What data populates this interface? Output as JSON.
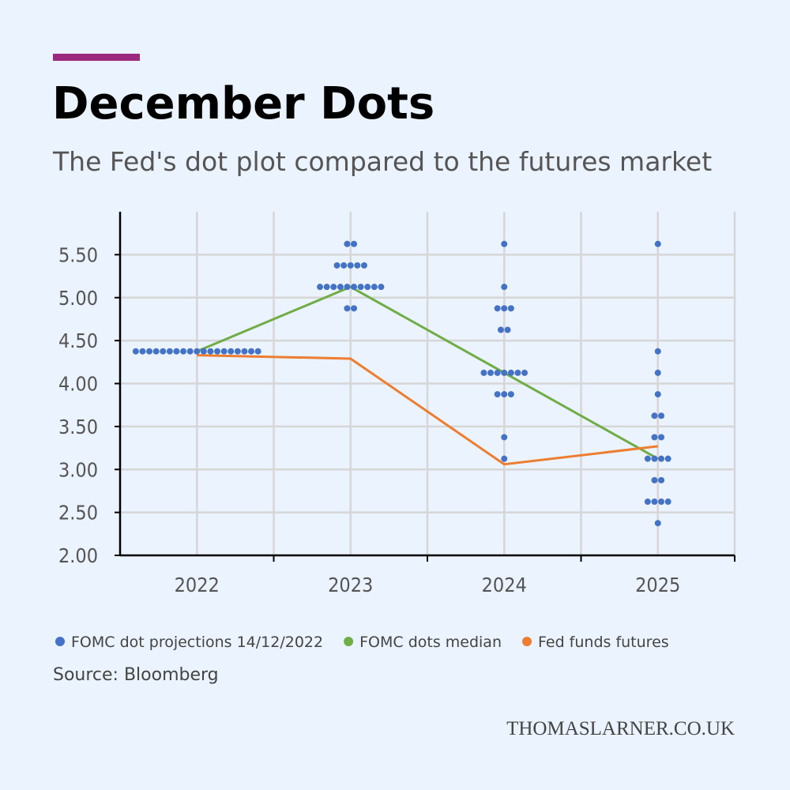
{
  "chart_data": {
    "type": "dot-line",
    "title": "December Dots",
    "subtitle": "The Fed's dot plot compared to the futures market",
    "source": "Source: Bloomberg",
    "credit": "THOMASLARNER.CO.UK",
    "categories": [
      "2022",
      "2023",
      "2024",
      "2025"
    ],
    "ylim": [
      2,
      6
    ],
    "yticks": [
      {
        "value": 2,
        "label": "2.00"
      },
      {
        "value": 2.5,
        "label": "2.50"
      },
      {
        "value": 3,
        "label": "3.00"
      },
      {
        "value": 3.5,
        "label": "3.50"
      },
      {
        "value": 4,
        "label": "4.00"
      },
      {
        "value": 4.5,
        "label": "4.50"
      },
      {
        "value": 5,
        "label": "5.00"
      },
      {
        "value": 5.5,
        "label": "5.50"
      }
    ],
    "grid": true,
    "dots": {
      "name": "FOMC dot projections 14/12/2022",
      "color": "#4472c4",
      "points": [
        {
          "category": "2022",
          "value": 4.375,
          "count": 19
        },
        {
          "category": "2023",
          "value": 5.625,
          "count": 2
        },
        {
          "category": "2023",
          "value": 5.375,
          "count": 5
        },
        {
          "category": "2023",
          "value": 5.125,
          "count": 10
        },
        {
          "category": "2023",
          "value": 4.875,
          "count": 2
        },
        {
          "category": "2024",
          "value": 5.625,
          "count": 1
        },
        {
          "category": "2024",
          "value": 5.125,
          "count": 1
        },
        {
          "category": "2024",
          "value": 4.875,
          "count": 3
        },
        {
          "category": "2024",
          "value": 4.625,
          "count": 2
        },
        {
          "category": "2024",
          "value": 4.125,
          "count": 7
        },
        {
          "category": "2024",
          "value": 3.875,
          "count": 3
        },
        {
          "category": "2024",
          "value": 3.375,
          "count": 1
        },
        {
          "category": "2024",
          "value": 3.125,
          "count": 1
        },
        {
          "category": "2025",
          "value": 5.625,
          "count": 1
        },
        {
          "category": "2025",
          "value": 4.375,
          "count": 1
        },
        {
          "category": "2025",
          "value": 4.125,
          "count": 1
        },
        {
          "category": "2025",
          "value": 3.875,
          "count": 1
        },
        {
          "category": "2025",
          "value": 3.625,
          "count": 2
        },
        {
          "category": "2025",
          "value": 3.375,
          "count": 2
        },
        {
          "category": "2025",
          "value": 3.125,
          "count": 4
        },
        {
          "category": "2025",
          "value": 2.875,
          "count": 2
        },
        {
          "category": "2025",
          "value": 2.625,
          "count": 4
        },
        {
          "category": "2025",
          "value": 2.375,
          "count": 1
        }
      ]
    },
    "series": [
      {
        "name": "FOMC dots median",
        "color": "#70ad47",
        "values": [
          4.375,
          5.125,
          4.125,
          3.125
        ]
      },
      {
        "name": "Fed funds futures",
        "color": "#ed7d31",
        "values": [
          4.33,
          4.29,
          3.06,
          3.27
        ]
      }
    ]
  }
}
